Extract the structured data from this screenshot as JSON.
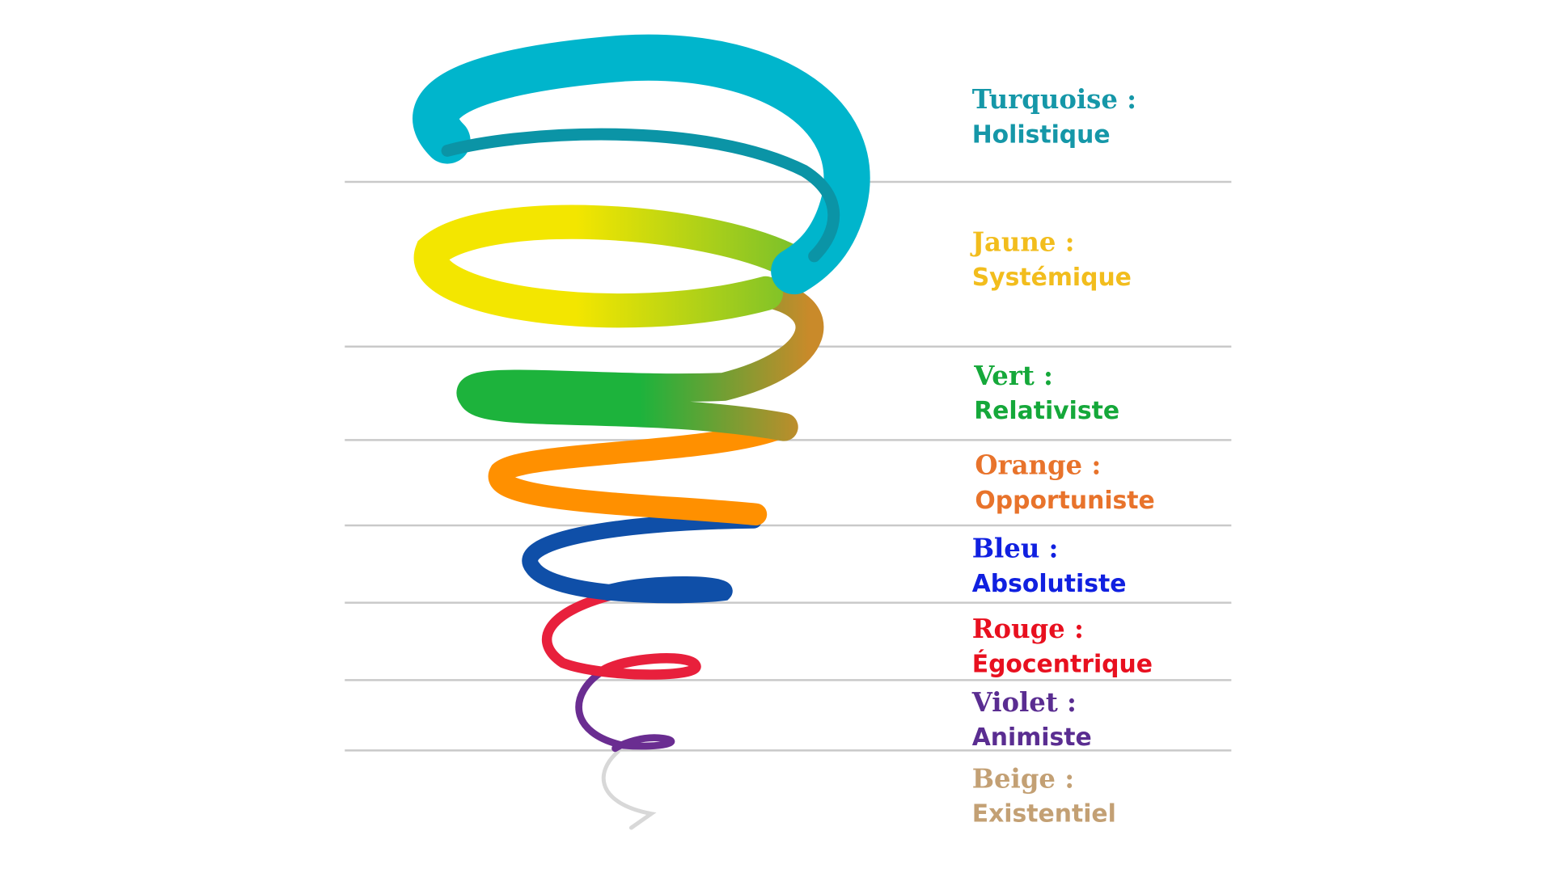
{
  "levels": [
    {
      "name": "Turquoise :",
      "description": "Holistique"
    },
    {
      "name": "Jaune :",
      "description": "Systémique"
    },
    {
      "name": "Vert :",
      "description": "Relativiste"
    },
    {
      "name": "Orange :",
      "description": "Opportuniste"
    },
    {
      "name": "Bleu :",
      "description": "Absolutiste"
    },
    {
      "name": "Rouge :",
      "description": "Égocentrique"
    },
    {
      "name": "Violet :",
      "description": "Animiste"
    },
    {
      "name": "Beige :",
      "description": "Existentiel"
    }
  ]
}
